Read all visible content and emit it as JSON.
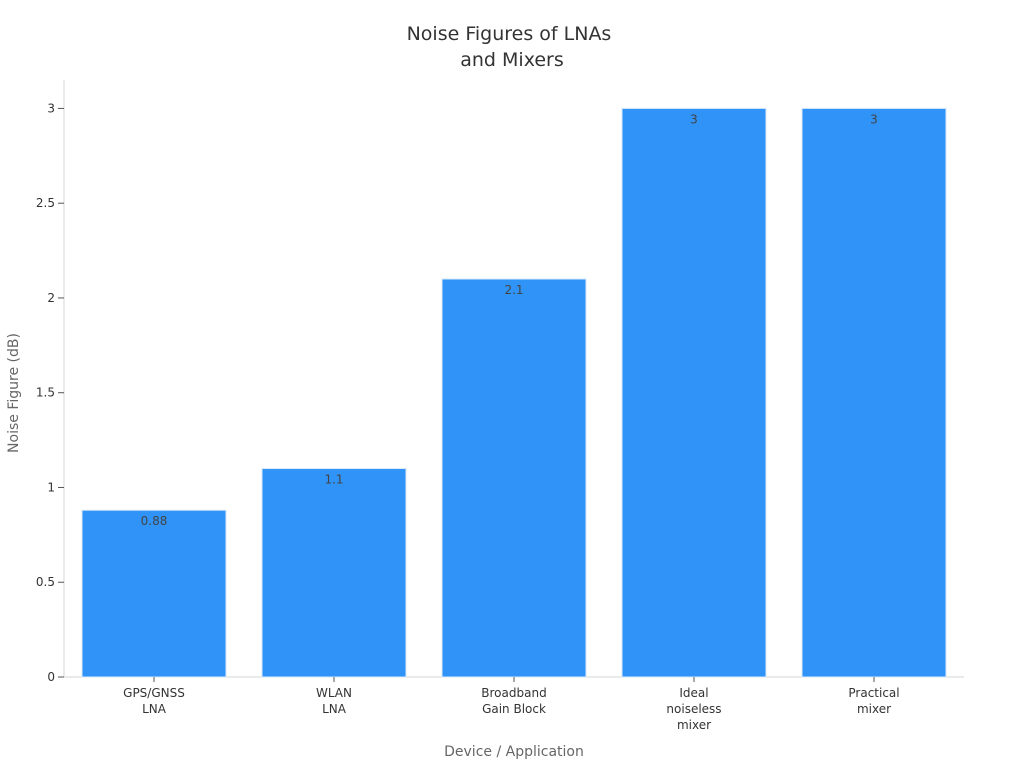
{
  "chart_data": {
    "type": "bar",
    "title": [
      "Noise Figures of LNAs",
      "and Mixers"
    ],
    "xlabel": "Device / Application",
    "ylabel": "Noise Figure (dB)",
    "categories": [
      [
        "GPS/GNSS",
        "LNA"
      ],
      [
        "WLAN",
        "LNA"
      ],
      [
        "Broadband",
        "Gain Block"
      ],
      [
        "Ideal",
        "noiseless",
        "mixer"
      ],
      [
        "Practical",
        "mixer"
      ]
    ],
    "values": [
      0.88,
      1.1,
      2.1,
      3,
      3
    ],
    "value_labels": [
      "0.88",
      "1.1",
      "2.1",
      "3",
      "3"
    ],
    "ylim": [
      0,
      3.15
    ],
    "yticks": [
      0,
      0.5,
      1,
      1.5,
      2,
      2.5,
      3
    ],
    "ytick_labels": [
      "0",
      "0.5",
      "1",
      "1.5",
      "2",
      "2.5",
      "3"
    ],
    "grid": false,
    "legend": "none",
    "bar_color": "#3093f8"
  }
}
